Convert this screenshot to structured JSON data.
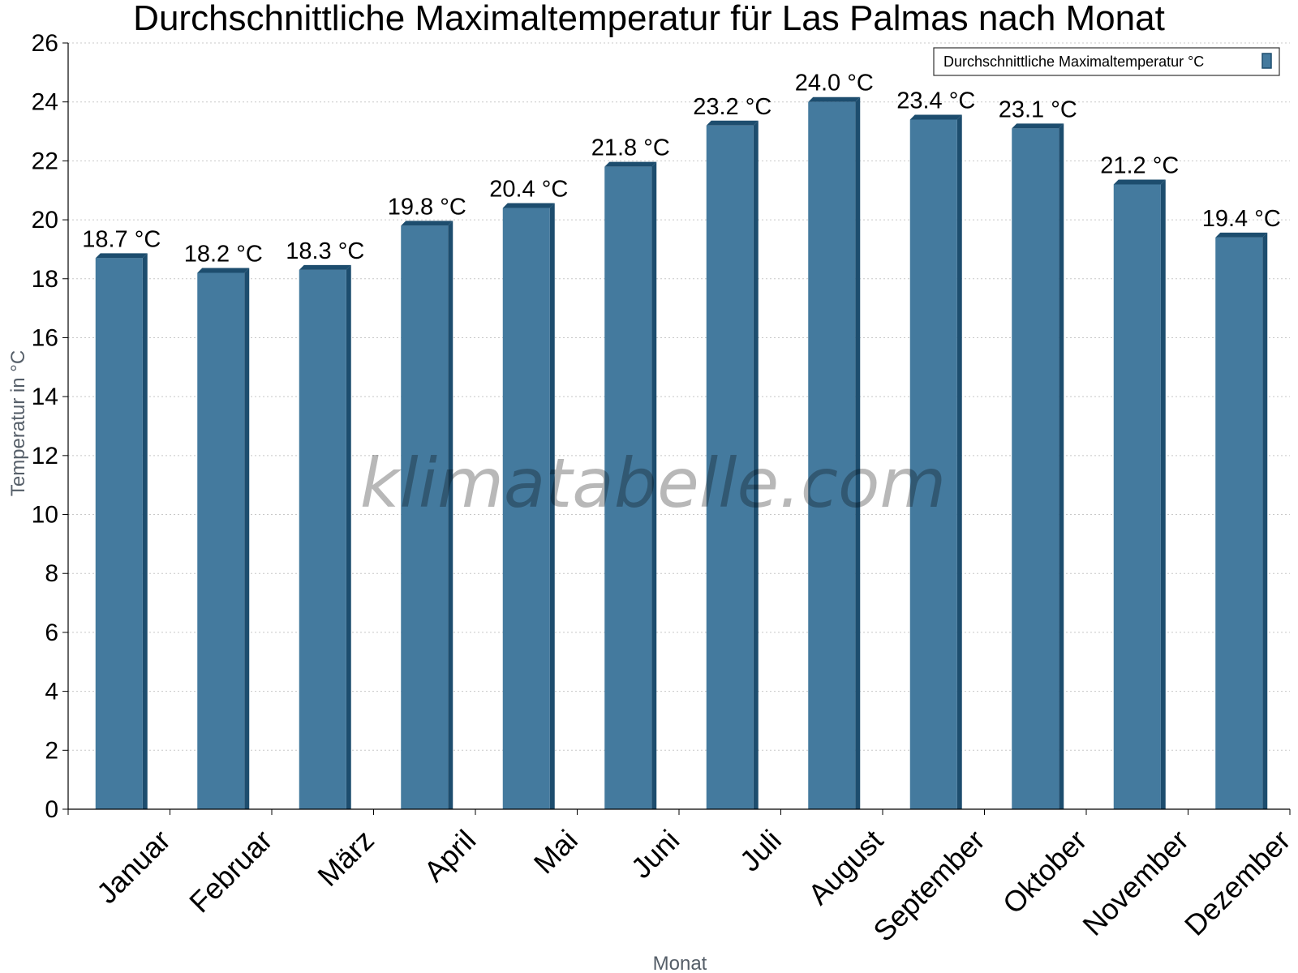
{
  "chart_data": {
    "type": "bar",
    "title": "Durchschnittliche Maximaltemperatur für Las Palmas nach Monat",
    "xlabel": "Monat",
    "ylabel": "Temperatur in °C",
    "ylim": [
      0,
      26
    ],
    "yticks": [
      0,
      2,
      4,
      6,
      8,
      10,
      12,
      14,
      16,
      18,
      20,
      22,
      24,
      26
    ],
    "grid": true,
    "legend_position": "top-right",
    "categories": [
      "Januar",
      "Februar",
      "März",
      "April",
      "Mai",
      "Juni",
      "Juli",
      "August",
      "September",
      "Oktober",
      "November",
      "Dezember"
    ],
    "series": [
      {
        "name": "Durchschnittliche Maximaltemperatur °C",
        "values": [
          18.7,
          18.2,
          18.3,
          19.8,
          20.4,
          21.8,
          23.2,
          24.0,
          23.4,
          23.1,
          21.2,
          19.4
        ],
        "labels": [
          "18.7 °C",
          "18.2 °C",
          "18.3 °C",
          "19.8 °C",
          "20.4 °C",
          "21.8 °C",
          "23.2 °C",
          "24.0 °C",
          "23.4 °C",
          "23.1 °C",
          "21.2 °C",
          "19.4 °C"
        ],
        "color": "#447a9e",
        "shade_color": "#1d4d6e"
      }
    ],
    "watermark": "klimatabelle.com"
  }
}
